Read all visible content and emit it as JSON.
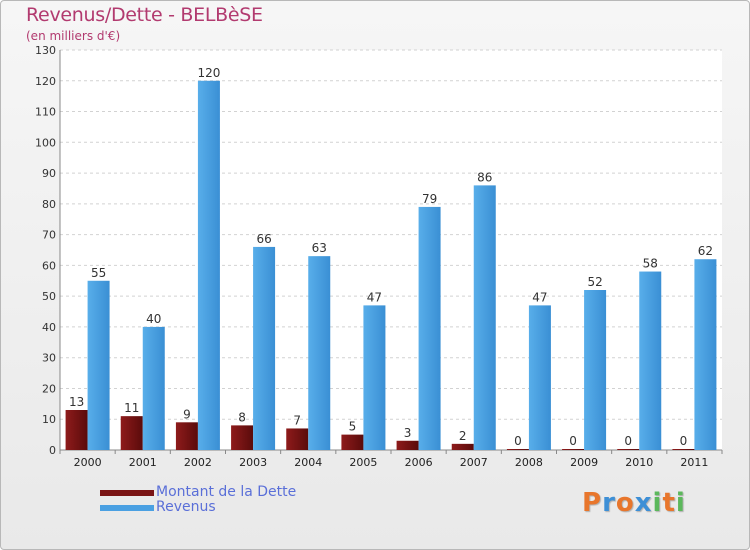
{
  "chart_data": {
    "type": "bar",
    "title": "Revenus/Dette - BELBèSE",
    "subtitle": "(en milliers d'€)",
    "categories": [
      "2000",
      "2001",
      "2002",
      "2003",
      "2004",
      "2005",
      "2006",
      "2007",
      "2008",
      "2009",
      "2010",
      "2011"
    ],
    "series": [
      {
        "name": "Montant de la Dette",
        "color": "#7a1414",
        "values": [
          13,
          11,
          9,
          8,
          7,
          5,
          3,
          2,
          0,
          0,
          0,
          0
        ]
      },
      {
        "name": "Revenus",
        "color": "#4aa0e2",
        "values": [
          55,
          40,
          120,
          66,
          63,
          47,
          79,
          86,
          47,
          52,
          58,
          62
        ]
      }
    ],
    "ylim": [
      0,
      130
    ],
    "yticks": [
      0,
      10,
      20,
      30,
      40,
      50,
      60,
      70,
      80,
      90,
      100,
      110,
      120,
      130
    ],
    "grid": true,
    "legend_position": "bottom-left"
  },
  "logo": {
    "letters": [
      "P",
      "r",
      "o",
      "x",
      "i",
      "t",
      "i"
    ],
    "colors": [
      "#e8762c",
      "#3d8fd6",
      "#e8762c",
      "#3d8fd6",
      "#5cb85c",
      "#e8762c",
      "#5cb85c"
    ]
  }
}
